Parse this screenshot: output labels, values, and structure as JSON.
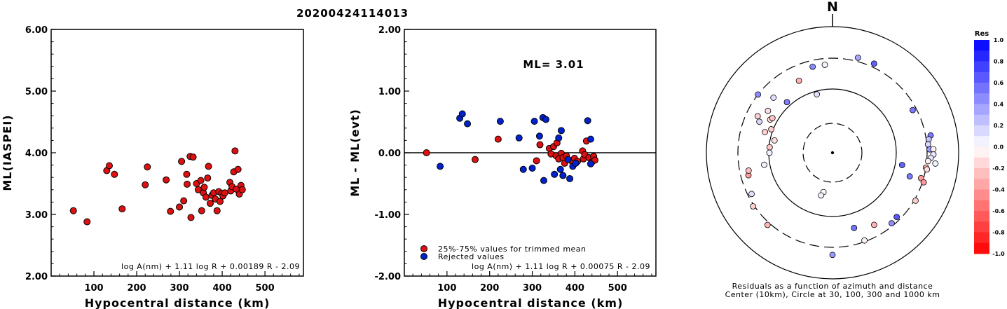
{
  "title": "20200424114013",
  "chart_data": [
    {
      "type": "scatter",
      "xlabel": "Hypocentral distance (km)",
      "ylabel": "ML(IASPEI)",
      "xlim": [
        0,
        590
      ],
      "ylim": [
        2.0,
        6.0
      ],
      "x_ticks": [
        "100",
        "200",
        "300",
        "400",
        "500"
      ],
      "y_ticks": [
        "2.00",
        "3.00",
        "4.00",
        "5.00",
        "6.00"
      ],
      "formula": "log A(nm) + 1.11 log R + 0.00189 R - 2.09",
      "marker_color": "#dd1111",
      "series": [
        {
          "points": [
            [
              52,
              3.06
            ],
            [
              84,
              2.88
            ],
            [
              130,
              3.71
            ],
            [
              136,
              3.79
            ],
            [
              148,
              3.65
            ],
            [
              166,
              3.09
            ],
            [
              220,
              3.48
            ],
            [
              225,
              3.77
            ],
            [
              269,
              3.56
            ],
            [
              279,
              3.05
            ],
            [
              300,
              3.12
            ],
            [
              305,
              3.86
            ],
            [
              310,
              3.22
            ],
            [
              317,
              3.65
            ],
            [
              318,
              3.49
            ],
            [
              325,
              3.94
            ],
            [
              327,
              2.95
            ],
            [
              332,
              3.93
            ],
            [
              340,
              3.5
            ],
            [
              344,
              3.4
            ],
            [
              350,
              3.55
            ],
            [
              352,
              3.06
            ],
            [
              356,
              3.35
            ],
            [
              358,
              3.44
            ],
            [
              362,
              3.28
            ],
            [
              366,
              3.59
            ],
            [
              368,
              3.78
            ],
            [
              372,
              3.18
            ],
            [
              376,
              3.31
            ],
            [
              380,
              3.35
            ],
            [
              384,
              3.25
            ],
            [
              388,
              3.06
            ],
            [
              392,
              3.37
            ],
            [
              395,
              3.21
            ],
            [
              399,
              3.34
            ],
            [
              402,
              3.3
            ],
            [
              406,
              3.35
            ],
            [
              418,
              3.52
            ],
            [
              420,
              3.38
            ],
            [
              423,
              3.45
            ],
            [
              427,
              3.69
            ],
            [
              430,
              4.03
            ],
            [
              433,
              3.41
            ],
            [
              437,
              3.73
            ],
            [
              440,
              3.33
            ],
            [
              444,
              3.47
            ],
            [
              447,
              3.4
            ]
          ]
        }
      ]
    },
    {
      "type": "scatter",
      "xlabel": "Hypocentral distance (km)",
      "ylabel": "ML - ML(evt)",
      "xlim": [
        0,
        590
      ],
      "ylim": [
        -2.0,
        2.0
      ],
      "x_ticks": [
        "100",
        "200",
        "300",
        "400",
        "500"
      ],
      "y_ticks": [
        "-2.00",
        "-1.00",
        "0.00",
        "1.00",
        "2.00"
      ],
      "annotation": "ML= 3.01",
      "formula": "log A(nm) + 1.11 log R + 0.00075 R - 2.09",
      "legend": {
        "placement": "bottom-left",
        "entries": [
          "25%-75% values for trimmed mean",
          "Rejected values"
        ],
        "colors": [
          "#dd1111",
          "#0022cc"
        ]
      },
      "series": [
        {
          "name": "25%-75% values for trimmed mean",
          "color": "#dd1111",
          "points": [
            [
              52,
              0.0
            ],
            [
              166,
              -0.11
            ],
            [
              220,
              0.22
            ],
            [
              310,
              -0.13
            ],
            [
              318,
              0.13
            ],
            [
              340,
              0.07
            ],
            [
              344,
              -0.02
            ],
            [
              350,
              0.1
            ],
            [
              356,
              -0.05
            ],
            [
              358,
              0.16
            ],
            [
              362,
              -0.1
            ],
            [
              368,
              -0.01
            ],
            [
              372,
              -0.08
            ],
            [
              376,
              -0.17
            ],
            [
              380,
              -0.05
            ],
            [
              392,
              -0.13
            ],
            [
              399,
              -0.09
            ],
            [
              406,
              -0.14
            ],
            [
              418,
              0.03
            ],
            [
              420,
              -0.1
            ],
            [
              423,
              -0.03
            ],
            [
              427,
              0.19
            ],
            [
              433,
              -0.08
            ],
            [
              440,
              -0.15
            ],
            [
              444,
              -0.06
            ],
            [
              447,
              -0.12
            ]
          ]
        },
        {
          "name": "Rejected values",
          "color": "#0022cc",
          "points": [
            [
              84,
              -0.22
            ],
            [
              130,
              0.56
            ],
            [
              136,
              0.63
            ],
            [
              148,
              0.47
            ],
            [
              225,
              0.51
            ],
            [
              269,
              0.24
            ],
            [
              279,
              -0.27
            ],
            [
              300,
              -0.25
            ],
            [
              305,
              0.51
            ],
            [
              317,
              0.27
            ],
            [
              325,
              0.57
            ],
            [
              327,
              -0.45
            ],
            [
              332,
              0.54
            ],
            [
              352,
              -0.35
            ],
            [
              362,
              0.24
            ],
            [
              366,
              -0.27
            ],
            [
              368,
              0.36
            ],
            [
              372,
              -0.37
            ],
            [
              384,
              -0.11
            ],
            [
              388,
              -0.42
            ],
            [
              395,
              -0.22
            ],
            [
              402,
              -0.17
            ],
            [
              430,
              0.52
            ],
            [
              437,
              0.22
            ],
            [
              437,
              -0.18
            ]
          ]
        }
      ]
    },
    {
      "type": "scatter",
      "title": "N",
      "caption": [
        "Residuals as a function of azimuth and distance",
        "Center (10km), Circle at 30, 100, 300 and 1000 km"
      ],
      "colorbar": {
        "title": "Res",
        "ticks": [
          "1.0",
          "0.8",
          "0.6",
          "0.4",
          "0.2",
          "0.0",
          "-0.2",
          "-0.4",
          "-0.6",
          "-0.8",
          "-1.0"
        ],
        "range": [
          -1.0,
          1.0
        ],
        "low_color": "#ff0000",
        "high_color": "#0000ff"
      },
      "rings_km": [
        30,
        100,
        300,
        1000
      ],
      "stations": [
        [
          296,
          0.66,
          -0.19
        ],
        [
          303,
          0.61,
          -0.12
        ],
        [
          298,
          0.56,
          -0.15
        ],
        [
          291,
          0.52,
          -0.2
        ],
        [
          287,
          0.56,
          -0.18
        ],
        [
          293,
          0.63,
          0.16
        ],
        [
          300,
          0.55,
          -0.23
        ],
        [
          282,
          0.47,
          -0.12
        ],
        [
          275,
          0.5,
          -0.22
        ],
        [
          270,
          0.5,
          0.05
        ],
        [
          308,
          0.75,
          0.45
        ],
        [
          313,
          0.64,
          0.12
        ],
        [
          318,
          0.54,
          0.5
        ],
        [
          347,
          0.7,
          0.45
        ],
        [
          15,
          0.78,
          0.35
        ],
        [
          25,
          0.78,
          0.62
        ],
        [
          62,
          0.72,
          0.52
        ],
        [
          80,
          0.79,
          0.52
        ],
        [
          82,
          0.77,
          0.23
        ],
        [
          85,
          0.76,
          0.15
        ],
        [
          88,
          0.77,
          0.4
        ],
        [
          88,
          0.8,
          -0.05
        ],
        [
          91,
          0.8,
          0.08
        ],
        [
          93,
          0.78,
          0.1
        ],
        [
          95,
          0.76,
          -0.05
        ],
        [
          96,
          0.82,
          0.05
        ],
        [
          99,
          0.75,
          -0.3
        ],
        [
          100,
          0.76,
          -0.12
        ],
        [
          106,
          0.73,
          -0.4
        ],
        [
          108,
          0.76,
          -0.4
        ],
        [
          120,
          0.76,
          -0.2
        ],
        [
          135,
          0.72,
          0.65
        ],
        [
          140,
          0.73,
          0.45
        ],
        [
          150,
          0.66,
          -0.3
        ],
        [
          160,
          0.74,
          -0.05
        ],
        [
          164,
          0.62,
          0.55
        ],
        [
          180,
          0.81,
          0.4
        ],
        [
          193,
          0.32,
          0.0
        ],
        [
          195,
          0.35,
          0.05
        ],
        [
          222,
          0.77,
          -0.28
        ],
        [
          236,
          0.76,
          -0.18
        ],
        [
          243,
          0.72,
          0.12
        ],
        [
          255,
          0.69,
          -0.38
        ],
        [
          258,
          0.68,
          -0.24
        ],
        [
          335,
          0.63,
          -0.3
        ],
        [
          345,
          0.48,
          0.12
        ],
        [
          355,
          0.7,
          0.05
        ],
        [
          107,
          0.64,
          0.52
        ],
        [
          100,
          0.56,
          0.62
        ],
        [
          260,
          0.55,
          0.05
        ]
      ]
    }
  ]
}
